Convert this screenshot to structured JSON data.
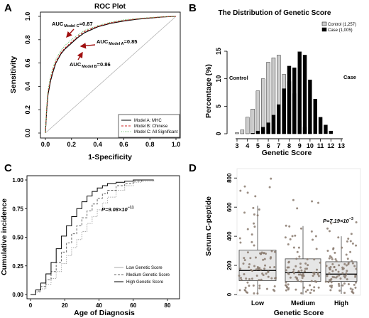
{
  "chart_data": [
    {
      "panel": "A",
      "type": "line",
      "title": "ROC Plot",
      "xlabel": "1-Specificity",
      "ylabel": "Sensitivity",
      "xlim": [
        0,
        1
      ],
      "ylim": [
        0,
        1
      ],
      "xticks": [
        "0.0",
        "0.2",
        "0.4",
        "0.6",
        "0.8",
        "1.0"
      ],
      "yticks": [
        "0.0",
        "0.2",
        "0.4",
        "0.6",
        "0.8",
        "1.0"
      ],
      "series": [
        {
          "name": "Model A: MHC",
          "color": "#000000",
          "dash": "solid",
          "auc": 0.85,
          "x": [
            0,
            0.01,
            0.02,
            0.04,
            0.06,
            0.08,
            0.1,
            0.12,
            0.15,
            0.2,
            0.25,
            0.3,
            0.4,
            0.5,
            0.6,
            0.7,
            0.8,
            0.9,
            1.0
          ],
          "y": [
            0,
            0.2,
            0.33,
            0.45,
            0.53,
            0.6,
            0.64,
            0.68,
            0.72,
            0.77,
            0.82,
            0.86,
            0.91,
            0.94,
            0.96,
            0.975,
            0.985,
            0.995,
            1.0
          ]
        },
        {
          "name": "Model B: Chinese",
          "color": "#cc2222",
          "dash": "dashed",
          "auc": 0.86,
          "x": [
            0,
            0.01,
            0.02,
            0.04,
            0.06,
            0.08,
            0.1,
            0.12,
            0.15,
            0.2,
            0.25,
            0.3,
            0.4,
            0.5,
            0.6,
            0.7,
            0.8,
            0.9,
            1.0
          ],
          "y": [
            0,
            0.22,
            0.35,
            0.47,
            0.55,
            0.61,
            0.65,
            0.69,
            0.73,
            0.78,
            0.83,
            0.87,
            0.915,
            0.945,
            0.965,
            0.978,
            0.988,
            0.996,
            1.0
          ]
        },
        {
          "name": "Model C: All Significant",
          "color": "#66bb66",
          "dash": "dotted",
          "auc": 0.87,
          "x": [
            0,
            0.01,
            0.02,
            0.04,
            0.06,
            0.08,
            0.1,
            0.12,
            0.15,
            0.2,
            0.25,
            0.3,
            0.4,
            0.5,
            0.6,
            0.7,
            0.8,
            0.9,
            1.0
          ],
          "y": [
            0,
            0.24,
            0.37,
            0.49,
            0.57,
            0.63,
            0.67,
            0.71,
            0.75,
            0.8,
            0.84,
            0.88,
            0.92,
            0.95,
            0.97,
            0.98,
            0.99,
            0.997,
            1.0
          ]
        }
      ],
      "annotations": [
        {
          "main": "AUC",
          "sub": "Model C",
          "value": "=0.87"
        },
        {
          "main": "AUC",
          "sub": "Model A",
          "value": "=0.85"
        },
        {
          "main": "AUC",
          "sub": "Model B",
          "value": "=0.86"
        }
      ],
      "arrow_color": "#a01010",
      "legend_position": "bottom-right"
    },
    {
      "panel": "B",
      "type": "bar",
      "title": "The Distribution of Genetic Score",
      "xlabel": "Genetic Score",
      "ylabel": "Percentage (%)",
      "ylim": [
        0,
        15
      ],
      "yticks": [
        "0",
        "5",
        "10",
        "15"
      ],
      "xticks": [
        "3",
        "4",
        "5",
        "6",
        "7",
        "8",
        "9",
        "10",
        "11",
        "12",
        "13"
      ],
      "side_labels": [
        "Control",
        "Case"
      ],
      "series": [
        {
          "name": "Control (1,257)",
          "color": "#cccccc",
          "x": [
            3.0,
            3.5,
            4.0,
            4.5,
            5.0,
            5.5,
            6.0,
            6.5,
            7.0,
            7.5,
            8.0,
            8.5,
            9.0,
            9.5,
            10.0
          ],
          "values": [
            0.2,
            0.7,
            3.0,
            4.5,
            7.8,
            10.0,
            13.0,
            13.8,
            14.3,
            10.8,
            9.5,
            7.3,
            2.4,
            1.2,
            0.3
          ]
        },
        {
          "name": "Case (1,005)",
          "color": "#000000",
          "x": [
            4.5,
            5.0,
            5.5,
            6.0,
            6.5,
            7.0,
            7.5,
            8.0,
            8.5,
            9.0,
            9.5,
            10.0,
            10.5,
            11.0,
            11.5,
            12.0
          ],
          "values": [
            0.1,
            0.5,
            1.2,
            2.0,
            3.4,
            5.3,
            8.2,
            12.3,
            12.0,
            14.9,
            14.3,
            9.8,
            6.3,
            3.0,
            1.6,
            0.5
          ]
        }
      ],
      "legend_position": "top-right"
    },
    {
      "panel": "C",
      "type": "line",
      "xlabel": "Age of Diagnosis",
      "ylabel": "Cumulative incidence",
      "xlim": [
        0,
        80
      ],
      "ylim": [
        0,
        1
      ],
      "xticks": [
        "0",
        "20",
        "40",
        "60",
        "80"
      ],
      "yticks": [
        "0.00",
        "0.25",
        "0.50",
        "0.75",
        "1.00"
      ],
      "p_value": "P=9.08×10",
      "p_exp": "−11",
      "series": [
        {
          "name": "Low Genetic Score",
          "color": "#aaaaaa",
          "x": [
            0,
            3,
            6,
            9,
            12,
            15,
            18,
            21,
            24,
            27,
            30,
            33,
            36,
            39,
            42,
            45,
            50,
            55,
            60,
            65,
            72
          ],
          "y": [
            0,
            0.02,
            0.05,
            0.09,
            0.14,
            0.2,
            0.27,
            0.34,
            0.41,
            0.48,
            0.55,
            0.62,
            0.68,
            0.74,
            0.8,
            0.85,
            0.91,
            0.95,
            0.98,
            0.99,
            1.0
          ]
        },
        {
          "name": "Medium Genetic Score",
          "color": "#666666",
          "x": [
            0,
            3,
            6,
            9,
            12,
            15,
            18,
            21,
            24,
            27,
            30,
            33,
            36,
            39,
            42,
            45,
            50,
            55,
            60,
            65,
            72
          ],
          "y": [
            0,
            0.03,
            0.07,
            0.13,
            0.2,
            0.28,
            0.37,
            0.45,
            0.53,
            0.6,
            0.67,
            0.73,
            0.79,
            0.84,
            0.88,
            0.91,
            0.95,
            0.97,
            0.99,
            1.0,
            1.0
          ]
        },
        {
          "name": "High Genetic Score",
          "color": "#000000",
          "x": [
            0,
            3,
            6,
            9,
            12,
            15,
            18,
            21,
            24,
            27,
            30,
            33,
            36,
            39,
            42,
            45,
            50,
            55,
            60,
            65,
            72
          ],
          "y": [
            0,
            0.04,
            0.1,
            0.18,
            0.28,
            0.4,
            0.51,
            0.6,
            0.68,
            0.75,
            0.81,
            0.86,
            0.9,
            0.93,
            0.95,
            0.97,
            0.98,
            0.99,
            1.0,
            1.0,
            1.0
          ]
        }
      ],
      "legend_position": "bottom-right"
    },
    {
      "panel": "D",
      "type": "boxplot",
      "xlabel": "Genetic Score",
      "ylabel": "Serum C-peptide",
      "ylim": [
        0,
        850
      ],
      "yticks": [
        "0",
        "200",
        "400",
        "600",
        "800"
      ],
      "categories": [
        "Low",
        "Medium",
        "High"
      ],
      "boxes": [
        {
          "q1": 95,
          "median": 165,
          "q3": 305,
          "whisker_low": 0,
          "whisker_high": 610
        },
        {
          "q1": 90,
          "median": 150,
          "q3": 245,
          "whisker_low": 0,
          "whisker_high": 470
        },
        {
          "q1": 90,
          "median": 140,
          "q3": 225,
          "whisker_low": 5,
          "whisker_high": 400
        }
      ],
      "p_value": "P=7.19×10",
      "p_exp": "−3",
      "box_fill": "#e6e6e6",
      "point_color": "#8a7a6e"
    }
  ]
}
